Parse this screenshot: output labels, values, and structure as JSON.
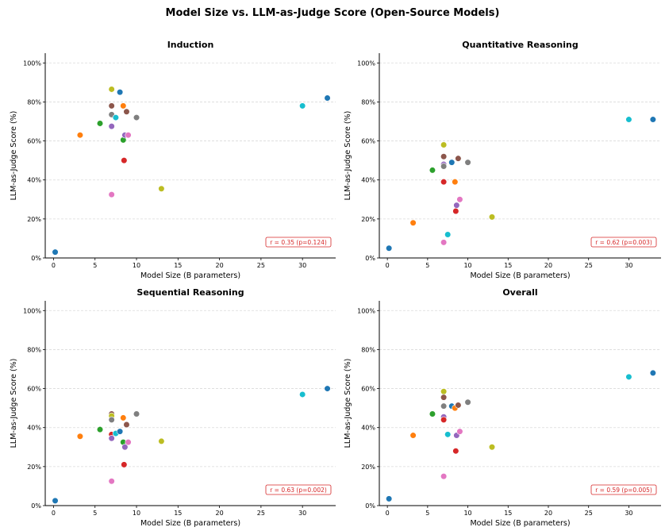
{
  "title": "Model Size vs. LLM-as-Judge Score (Open-Source Models)",
  "chart_data": [
    {
      "type": "scatter",
      "title": "Induction",
      "xlabel": "Model Size (B parameters)",
      "ylabel": "LLM-as-Judge Score (%)",
      "xlim": [
        -1,
        34
      ],
      "ylim": [
        0,
        105
      ],
      "xticks": [
        "0",
        "5",
        "10",
        "15",
        "20",
        "25",
        "30"
      ],
      "yticks": [
        "0%",
        "20%",
        "40%",
        "60%",
        "80%",
        "100%"
      ],
      "grid": "y-dashed",
      "annotation": "r = 0.35 (p=0.124)",
      "points": [
        {
          "x": 0.2,
          "y": 3,
          "color": "#1f77b4"
        },
        {
          "x": 3.2,
          "y": 63,
          "color": "#ff7f0e"
        },
        {
          "x": 5.6,
          "y": 69,
          "color": "#2ca02c"
        },
        {
          "x": 7.0,
          "y": 86.5,
          "color": "#bcbd22"
        },
        {
          "x": 7.0,
          "y": 78,
          "color": "#8c564b"
        },
        {
          "x": 7.0,
          "y": 73.5,
          "color": "#7f7f7f"
        },
        {
          "x": 7.0,
          "y": 67.5,
          "color": "#9467bd"
        },
        {
          "x": 7.0,
          "y": 32.5,
          "color": "#e377c2"
        },
        {
          "x": 7.5,
          "y": 72,
          "color": "#17becf"
        },
        {
          "x": 8.0,
          "y": 85,
          "color": "#1f77b4"
        },
        {
          "x": 8.4,
          "y": 78,
          "color": "#ff7f0e"
        },
        {
          "x": 8.4,
          "y": 60.5,
          "color": "#2ca02c"
        },
        {
          "x": 8.5,
          "y": 50,
          "color": "#d62728"
        },
        {
          "x": 8.6,
          "y": 63,
          "color": "#9467bd"
        },
        {
          "x": 8.8,
          "y": 75,
          "color": "#8c564b"
        },
        {
          "x": 9.0,
          "y": 63,
          "color": "#e377c2"
        },
        {
          "x": 10.0,
          "y": 72,
          "color": "#7f7f7f"
        },
        {
          "x": 13.0,
          "y": 35.5,
          "color": "#bcbd22"
        },
        {
          "x": 30.0,
          "y": 78,
          "color": "#17becf"
        },
        {
          "x": 33.0,
          "y": 82,
          "color": "#1f77b4"
        }
      ]
    },
    {
      "type": "scatter",
      "title": "Quantitative Reasoning",
      "xlabel": "Model Size (B parameters)",
      "ylabel": "LLM-as-Judge Score (%)",
      "xlim": [
        -1,
        34
      ],
      "ylim": [
        0,
        105
      ],
      "xticks": [
        "0",
        "5",
        "10",
        "15",
        "20",
        "25",
        "30"
      ],
      "yticks": [
        "0%",
        "20%",
        "40%",
        "60%",
        "80%",
        "100%"
      ],
      "grid": "y-dashed",
      "annotation": "r = 0.62 (p=0.003)",
      "points": [
        {
          "x": 0.2,
          "y": 5,
          "color": "#1f77b4"
        },
        {
          "x": 3.2,
          "y": 18,
          "color": "#ff7f0e"
        },
        {
          "x": 5.6,
          "y": 45,
          "color": "#2ca02c"
        },
        {
          "x": 7.0,
          "y": 58,
          "color": "#bcbd22"
        },
        {
          "x": 7.0,
          "y": 52,
          "color": "#8c564b"
        },
        {
          "x": 7.0,
          "y": 48,
          "color": "#9467bd"
        },
        {
          "x": 7.0,
          "y": 47,
          "color": "#7f7f7f"
        },
        {
          "x": 7.0,
          "y": 39,
          "color": "#d62728"
        },
        {
          "x": 7.0,
          "y": 8,
          "color": "#e377c2"
        },
        {
          "x": 7.5,
          "y": 12,
          "color": "#17becf"
        },
        {
          "x": 8.0,
          "y": 49,
          "color": "#1f77b4"
        },
        {
          "x": 8.4,
          "y": 39,
          "color": "#ff7f0e"
        },
        {
          "x": 8.5,
          "y": 24,
          "color": "#d62728"
        },
        {
          "x": 8.6,
          "y": 27,
          "color": "#9467bd"
        },
        {
          "x": 8.8,
          "y": 51,
          "color": "#8c564b"
        },
        {
          "x": 9.0,
          "y": 30,
          "color": "#e377c2"
        },
        {
          "x": 10.0,
          "y": 49,
          "color": "#7f7f7f"
        },
        {
          "x": 13.0,
          "y": 21,
          "color": "#bcbd22"
        },
        {
          "x": 30.0,
          "y": 71,
          "color": "#17becf"
        },
        {
          "x": 33.0,
          "y": 71,
          "color": "#1f77b4"
        }
      ]
    },
    {
      "type": "scatter",
      "title": "Sequential Reasoning",
      "xlabel": "Model Size (B parameters)",
      "ylabel": "LLM-as-Judge Score (%)",
      "xlim": [
        -1,
        34
      ],
      "ylim": [
        0,
        105
      ],
      "xticks": [
        "0",
        "5",
        "10",
        "15",
        "20",
        "25",
        "30"
      ],
      "yticks": [
        "0%",
        "20%",
        "40%",
        "60%",
        "80%",
        "100%"
      ],
      "grid": "y-dashed",
      "annotation": "r = 0.63 (p=0.002)",
      "points": [
        {
          "x": 0.2,
          "y": 2.5,
          "color": "#1f77b4"
        },
        {
          "x": 3.2,
          "y": 35.5,
          "color": "#ff7f0e"
        },
        {
          "x": 5.6,
          "y": 39,
          "color": "#2ca02c"
        },
        {
          "x": 7.0,
          "y": 47,
          "color": "#8c564b"
        },
        {
          "x": 7.0,
          "y": 46,
          "color": "#bcbd22"
        },
        {
          "x": 7.0,
          "y": 44,
          "color": "#7f7f7f"
        },
        {
          "x": 7.0,
          "y": 36.5,
          "color": "#d62728"
        },
        {
          "x": 7.0,
          "y": 34.5,
          "color": "#9467bd"
        },
        {
          "x": 7.0,
          "y": 12.5,
          "color": "#e377c2"
        },
        {
          "x": 7.5,
          "y": 37,
          "color": "#17becf"
        },
        {
          "x": 8.0,
          "y": 38,
          "color": "#1f77b4"
        },
        {
          "x": 8.4,
          "y": 45,
          "color": "#ff7f0e"
        },
        {
          "x": 8.4,
          "y": 32.5,
          "color": "#2ca02c"
        },
        {
          "x": 8.5,
          "y": 21,
          "color": "#d62728"
        },
        {
          "x": 8.6,
          "y": 30,
          "color": "#9467bd"
        },
        {
          "x": 8.8,
          "y": 41.5,
          "color": "#8c564b"
        },
        {
          "x": 9.0,
          "y": 32.5,
          "color": "#e377c2"
        },
        {
          "x": 10.0,
          "y": 47,
          "color": "#7f7f7f"
        },
        {
          "x": 13.0,
          "y": 33,
          "color": "#bcbd22"
        },
        {
          "x": 30.0,
          "y": 57,
          "color": "#17becf"
        },
        {
          "x": 33.0,
          "y": 60,
          "color": "#1f77b4"
        }
      ]
    },
    {
      "type": "scatter",
      "title": "Overall",
      "xlabel": "Model Size (B parameters)",
      "ylabel": "LLM-as-Judge Score (%)",
      "xlim": [
        -1,
        34
      ],
      "ylim": [
        0,
        105
      ],
      "xticks": [
        "0",
        "5",
        "10",
        "15",
        "20",
        "25",
        "30"
      ],
      "yticks": [
        "0%",
        "20%",
        "40%",
        "60%",
        "80%",
        "100%"
      ],
      "grid": "y-dashed",
      "annotation": "r = 0.59 (p=0.005)",
      "points": [
        {
          "x": 0.2,
          "y": 3.5,
          "color": "#1f77b4"
        },
        {
          "x": 3.2,
          "y": 36,
          "color": "#ff7f0e"
        },
        {
          "x": 5.6,
          "y": 47,
          "color": "#2ca02c"
        },
        {
          "x": 7.0,
          "y": 58.5,
          "color": "#bcbd22"
        },
        {
          "x": 7.0,
          "y": 55.5,
          "color": "#8c564b"
        },
        {
          "x": 7.0,
          "y": 51,
          "color": "#7f7f7f"
        },
        {
          "x": 7.0,
          "y": 45.5,
          "color": "#9467bd"
        },
        {
          "x": 7.0,
          "y": 44,
          "color": "#d62728"
        },
        {
          "x": 7.0,
          "y": 15,
          "color": "#e377c2"
        },
        {
          "x": 7.5,
          "y": 36.5,
          "color": "#17becf"
        },
        {
          "x": 8.0,
          "y": 51,
          "color": "#1f77b4"
        },
        {
          "x": 8.4,
          "y": 50,
          "color": "#ff7f0e"
        },
        {
          "x": 8.5,
          "y": 28,
          "color": "#d62728"
        },
        {
          "x": 8.6,
          "y": 36,
          "color": "#9467bd"
        },
        {
          "x": 8.8,
          "y": 51.5,
          "color": "#8c564b"
        },
        {
          "x": 9.0,
          "y": 38,
          "color": "#e377c2"
        },
        {
          "x": 10.0,
          "y": 53,
          "color": "#7f7f7f"
        },
        {
          "x": 13.0,
          "y": 30,
          "color": "#bcbd22"
        },
        {
          "x": 30.0,
          "y": 66,
          "color": "#17becf"
        },
        {
          "x": 33.0,
          "y": 68,
          "color": "#1f77b4"
        }
      ]
    }
  ]
}
